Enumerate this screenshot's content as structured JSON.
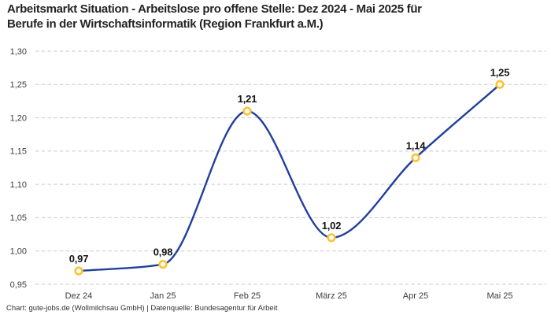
{
  "header": {
    "title_lines": [
      "Arbeitsmarkt Situation - Arbeitslose pro offene Stelle: Dez 2024 - Mai 2025 für",
      "Berufe in der Wirtschaftsinformatik (Region Frankfurt a.M.)"
    ]
  },
  "footer": {
    "credit": "Chart: gute-jobs.de (Wollmilchsau GmbH) | Datenquelle: Bundesagentur für Arbeit"
  },
  "chart_data": {
    "type": "line",
    "title": "Arbeitsmarkt Situation - Arbeitslose pro offene Stelle: Dez 2024 - Mai 2025 für Berufe in der Wirtschaftsinformatik (Region Frankfurt a.M.)",
    "categories": [
      "Dez 24",
      "Jan 25",
      "Feb 25",
      "März 25",
      "Apr 25",
      "Mai 25"
    ],
    "values": [
      0.97,
      0.98,
      1.21,
      1.02,
      1.14,
      1.25
    ],
    "value_labels": [
      "0,97",
      "0,98",
      "1,21",
      "1,02",
      "1,14",
      "1,25"
    ],
    "xlabel": "",
    "ylabel": "",
    "ylim": [
      0.95,
      1.3
    ],
    "yticks": [
      0.95,
      1.0,
      1.05,
      1.1,
      1.15,
      1.2,
      1.25,
      1.3
    ],
    "ytick_labels": [
      "0,95",
      "1,00",
      "1,05",
      "1,10",
      "1,15",
      "1,20",
      "1,25",
      "1,30"
    ],
    "grid": "horizontal-dashed",
    "legend": "none",
    "curve": "monotone",
    "colors": {
      "line": "#21409a",
      "marker_ring": "#fcc331",
      "marker_fill": "#ffffff",
      "gridline": "#c9c9c9",
      "tick_text": "#3d3d3d",
      "value_label_text": "#141414"
    }
  }
}
